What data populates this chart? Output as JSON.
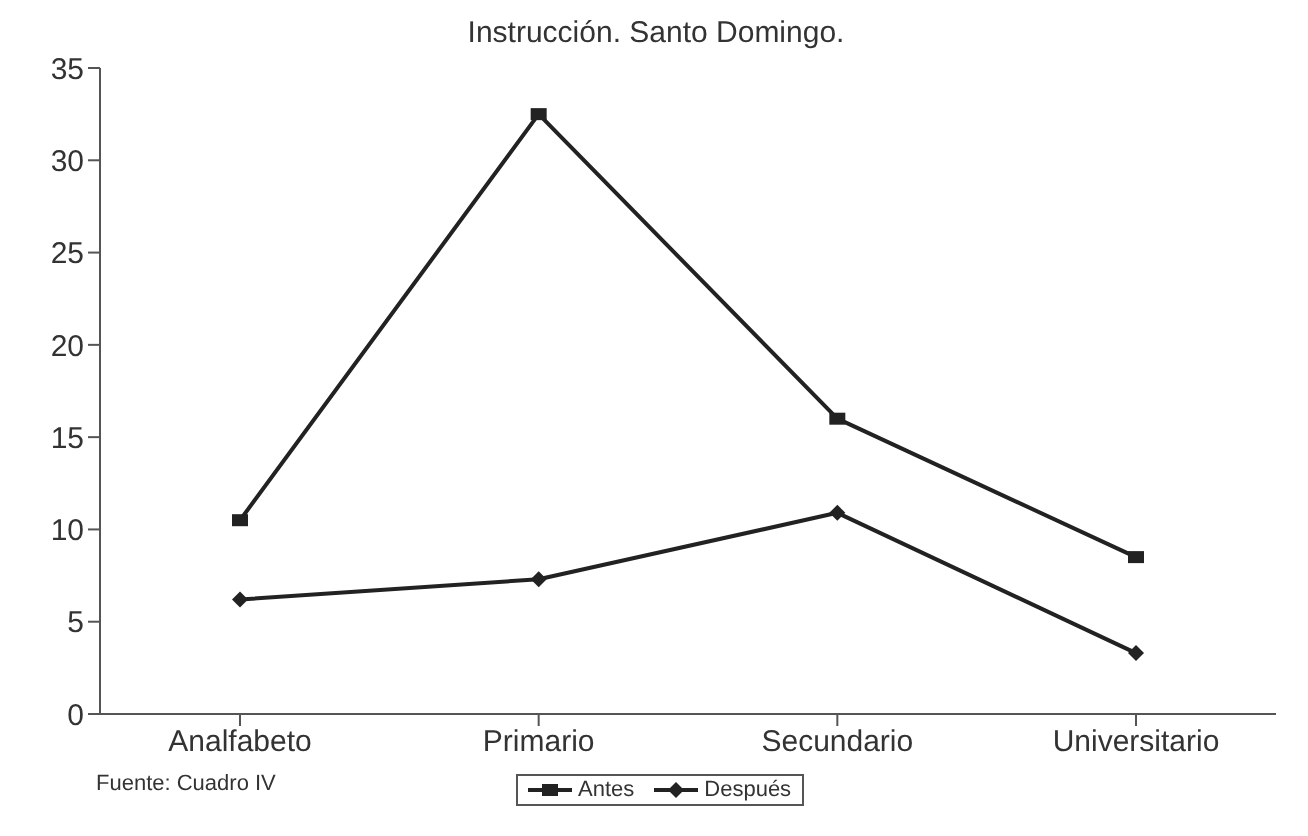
{
  "chart_data": {
    "type": "line",
    "title": "Instrucción. Santo Domingo.",
    "categories": [
      "Analfabeto",
      "Primario",
      "Secundario",
      "Universitario"
    ],
    "series": [
      {
        "name": "Antes",
        "color": "#222222",
        "values": [
          10.5,
          32.5,
          16,
          8.5
        ],
        "marker": "square"
      },
      {
        "name": "Después",
        "color": "#222222",
        "values": [
          6.2,
          7.3,
          10.9,
          3.3
        ],
        "marker": "diamond"
      }
    ],
    "ylim": [
      0,
      35
    ],
    "yticks": [
      0,
      5,
      10,
      15,
      20,
      25,
      30,
      35
    ],
    "legend": "bottom",
    "line_style": "solid",
    "annotations": [
      "Fuente: Cuadro IV"
    ]
  }
}
